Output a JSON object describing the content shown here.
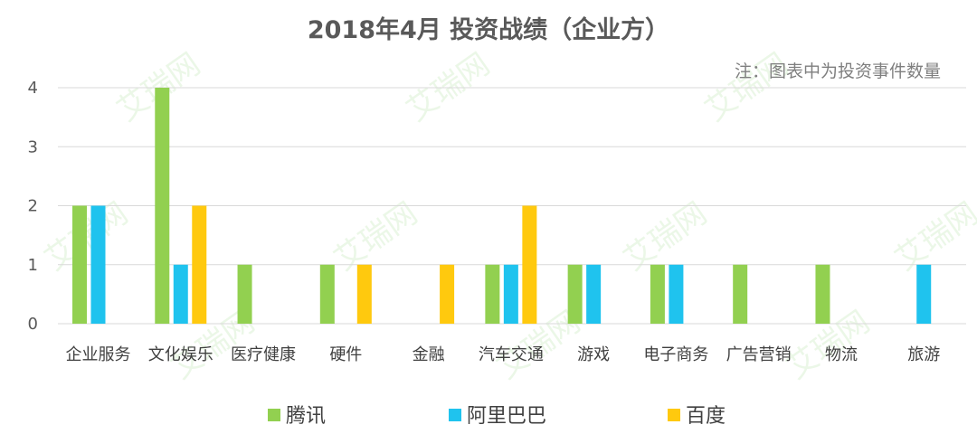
{
  "chart_data": {
    "type": "bar",
    "title": "2018年4月 投资战绩（企业方）",
    "note": "注：图表中为投资事件数量",
    "categories": [
      "企业服务",
      "文化娱乐",
      "医疗健康",
      "硬件",
      "金融",
      "汽车交通",
      "游戏",
      "电子商务",
      "广告营销",
      "物流",
      "旅游"
    ],
    "series": [
      {
        "name": "腾讯",
        "color": "#92D050",
        "values": [
          2,
          4,
          1,
          1,
          0,
          1,
          1,
          1,
          1,
          1,
          0
        ]
      },
      {
        "name": "阿里巴巴",
        "color": "#1FC3EE",
        "values": [
          2,
          1,
          0,
          0,
          0,
          1,
          1,
          1,
          0,
          0,
          1
        ]
      },
      {
        "name": "百度",
        "color": "#FFC90E",
        "values": [
          0,
          2,
          0,
          1,
          1,
          2,
          0,
          0,
          0,
          0,
          0
        ]
      }
    ],
    "yticks": [
      "0",
      "1",
      "2",
      "3",
      "4"
    ],
    "ylim": [
      0,
      4
    ],
    "grid": true,
    "legend_position": "bottom",
    "watermark": "艾瑞网"
  }
}
